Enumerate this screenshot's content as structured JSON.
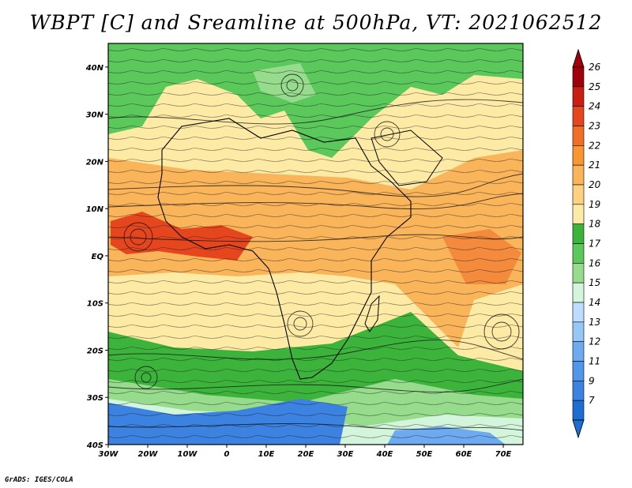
{
  "title": "WBPT [C] and Sreamline at 500hPa, VT: 2021062512",
  "credit": "GrADS: IGES/COLA",
  "map": {
    "lon_range": [
      -30,
      75
    ],
    "lat_range": [
      -40,
      45
    ],
    "lon_ticks": [
      {
        "value": -30,
        "label": "30W"
      },
      {
        "value": -20,
        "label": "20W"
      },
      {
        "value": -10,
        "label": "10W"
      },
      {
        "value": 0,
        "label": "0"
      },
      {
        "value": 10,
        "label": "10E"
      },
      {
        "value": 20,
        "label": "20E"
      },
      {
        "value": 30,
        "label": "30E"
      },
      {
        "value": 40,
        "label": "40E"
      },
      {
        "value": 50,
        "label": "50E"
      },
      {
        "value": 60,
        "label": "60E"
      },
      {
        "value": 70,
        "label": "70E"
      }
    ],
    "lat_ticks": [
      {
        "value": 40,
        "label": "40N"
      },
      {
        "value": 30,
        "label": "30N"
      },
      {
        "value": 20,
        "label": "20N"
      },
      {
        "value": 10,
        "label": "10N"
      },
      {
        "value": 0,
        "label": "EQ"
      },
      {
        "value": -10,
        "label": "10S"
      },
      {
        "value": -20,
        "label": "20S"
      },
      {
        "value": -30,
        "label": "30S"
      },
      {
        "value": -40,
        "label": "40S"
      }
    ]
  },
  "colorbar": {
    "unit": "C",
    "levels": [
      {
        "label": "26",
        "color": "#a0000a"
      },
      {
        "label": "25",
        "color": "#c81e14"
      },
      {
        "label": "24",
        "color": "#e6461e"
      },
      {
        "label": "23",
        "color": "#f06e28"
      },
      {
        "label": "22",
        "color": "#fa9632"
      },
      {
        "label": "21",
        "color": "#fab45a"
      },
      {
        "label": "20",
        "color": "#fcd282"
      },
      {
        "label": "19",
        "color": "#fdeba5"
      },
      {
        "label": "18",
        "color": "#3cb43c"
      },
      {
        "label": "17",
        "color": "#5ac85a"
      },
      {
        "label": "16",
        "color": "#96dc8c"
      },
      {
        "label": "15",
        "color": "#d2f5dc"
      },
      {
        "label": "14",
        "color": "#bedcff"
      },
      {
        "label": "13",
        "color": "#96c8f5"
      },
      {
        "label": "12",
        "color": "#6eaaf0"
      },
      {
        "label": "11",
        "color": "#5096eb"
      },
      {
        "label": "9",
        "color": "#3c82e1"
      },
      {
        "label": "7",
        "color": "#1e6ed2"
      }
    ],
    "top_arrow_color": "#a0000a",
    "bottom_arrow_color": "#1e6ed2"
  },
  "field_regions": [
    {
      "name": "north-green",
      "color": "#5ac85a"
    },
    {
      "name": "sahara-tan",
      "color": "#fdeba5"
    },
    {
      "name": "sahel-orange",
      "color": "#fab45a"
    },
    {
      "name": "gulf-guinea-red",
      "color": "#e6461e"
    },
    {
      "name": "indian-ocean-orange",
      "color": "#fab45a"
    },
    {
      "name": "southern-green",
      "color": "#3cb43c"
    },
    {
      "name": "southern-blue",
      "color": "#3c82e1"
    }
  ]
}
